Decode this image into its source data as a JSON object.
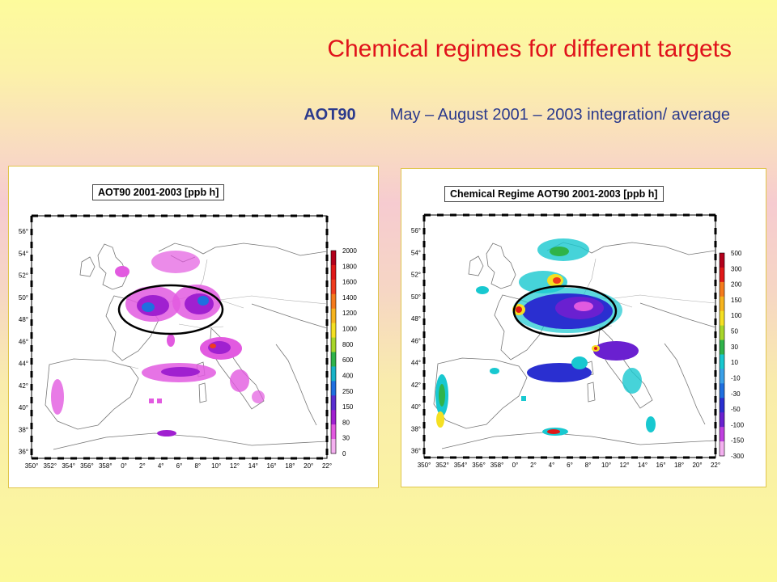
{
  "slide": {
    "title": "Chemical regimes for different targets",
    "subtitle_label": "AOT90",
    "subtitle_text": "May – August 2001 – 2003 integration/ average"
  },
  "left_map": {
    "title": "AOT90    2001-2003    [ppb h]",
    "lat_labels": [
      "56°",
      "54°",
      "52°",
      "50°",
      "48°",
      "46°",
      "44°",
      "42°",
      "40°",
      "38°",
      "36°"
    ],
    "lon_labels": [
      "350°",
      "352°",
      "354°",
      "356°",
      "358°",
      "0°",
      "2°",
      "4°",
      "6°",
      "8°",
      "10°",
      "12°",
      "14°",
      "16°",
      "18°",
      "20°",
      "22°"
    ],
    "colorbar_labels": [
      "2000",
      "1800",
      "1600",
      "1400",
      "1200",
      "1000",
      "800",
      "600",
      "400",
      "250",
      "150",
      "80",
      "30",
      "0"
    ],
    "colorbar_colors": [
      "#b3001b",
      "#e01818",
      "#f03c1e",
      "#f57a1c",
      "#f7b41e",
      "#f5e022",
      "#a8d62a",
      "#2fb34a",
      "#18b3c8",
      "#1f6fe0",
      "#5a2fd0",
      "#a020d0",
      "#e25ae0",
      "#f4b0f0"
    ]
  },
  "right_map": {
    "title": "Chemical Regime AOT90 2001-2003 [ppb h]",
    "lat_labels": [
      "56°",
      "54°",
      "52°",
      "50°",
      "48°",
      "46°",
      "44°",
      "42°",
      "40°",
      "38°",
      "36°"
    ],
    "lon_labels": [
      "350°",
      "352°",
      "354°",
      "356°",
      "358°",
      "0°",
      "2°",
      "4°",
      "6°",
      "8°",
      "10°",
      "12°",
      "14°",
      "16°",
      "18°",
      "20°",
      "22°"
    ],
    "colorbar_labels": [
      "500",
      "300",
      "200",
      "150",
      "100",
      "50",
      "30",
      "10",
      "-10",
      "-30",
      "-50",
      "-100",
      "-150",
      "-300"
    ],
    "colorbar_colors": [
      "#b3001b",
      "#e01818",
      "#f57a1c",
      "#f7b41e",
      "#f5e022",
      "#a8d62a",
      "#2fb34a",
      "#18c8d0",
      "#3aa0e8",
      "#1f6fe0",
      "#2a2fd0",
      "#6a20d0",
      "#c040e0",
      "#f4b0f0"
    ]
  }
}
